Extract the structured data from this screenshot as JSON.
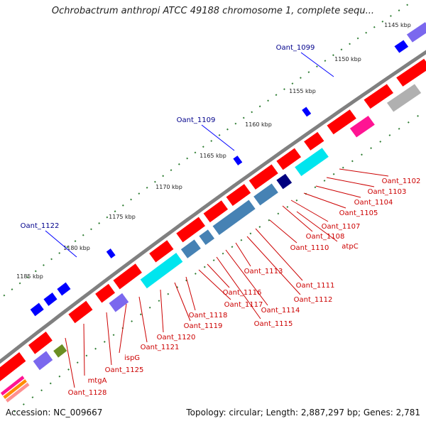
{
  "header": {
    "title": "Ochrobactrum anthropi ATCC 49188 chromosome 1, complete sequ..."
  },
  "footer": {
    "accession": "Accession: NC_009667",
    "topology": "Topology: circular; Length: 2,887,297 bp; Genes: 2,781"
  },
  "ticks": [
    "1145 kbp",
    "1150 kbp",
    "1155 kbp",
    "1160 kbp",
    "1165 kbp",
    "1170 kbp",
    "1175 kbp",
    "1180 kbp",
    "1185 kbp"
  ],
  "outer_labels": [
    "Oant_1099",
    "Oant_1109",
    "Oant_1122"
  ],
  "inner_labels": [
    "Oant_1102",
    "Oant_1103",
    "Oant_1104",
    "Oant_1105",
    "Oant_1107",
    "Oant_1108",
    "atpC",
    "Oant_1110",
    "Oant_1111",
    "Oant_1112",
    "Oant_1113",
    "Oant_1114",
    "Oant_1115",
    "Oant_1116",
    "Oant_1117",
    "Oant_1118",
    "Oant_1119",
    "Oant_1120",
    "Oant_1121",
    "ispG",
    "Oant_1125",
    "mtgA",
    "Oant_1128"
  ],
  "colors": {
    "backbone": "#808080",
    "cds": "#ff0000",
    "outer_gene": "#0000ff",
    "label_outer": "#00008b",
    "label_inner": "#cc0000",
    "tick": "#2e7d32",
    "cyan": "#00e5ee",
    "steelblue": "#4682b4",
    "navy": "#00007f",
    "orange": "#ff8c00",
    "olive": "#6b8e23",
    "magenta": "#ff1493",
    "pink": "#ff9090",
    "purple": "#7b68ee",
    "gray": "#b0b0b0"
  }
}
